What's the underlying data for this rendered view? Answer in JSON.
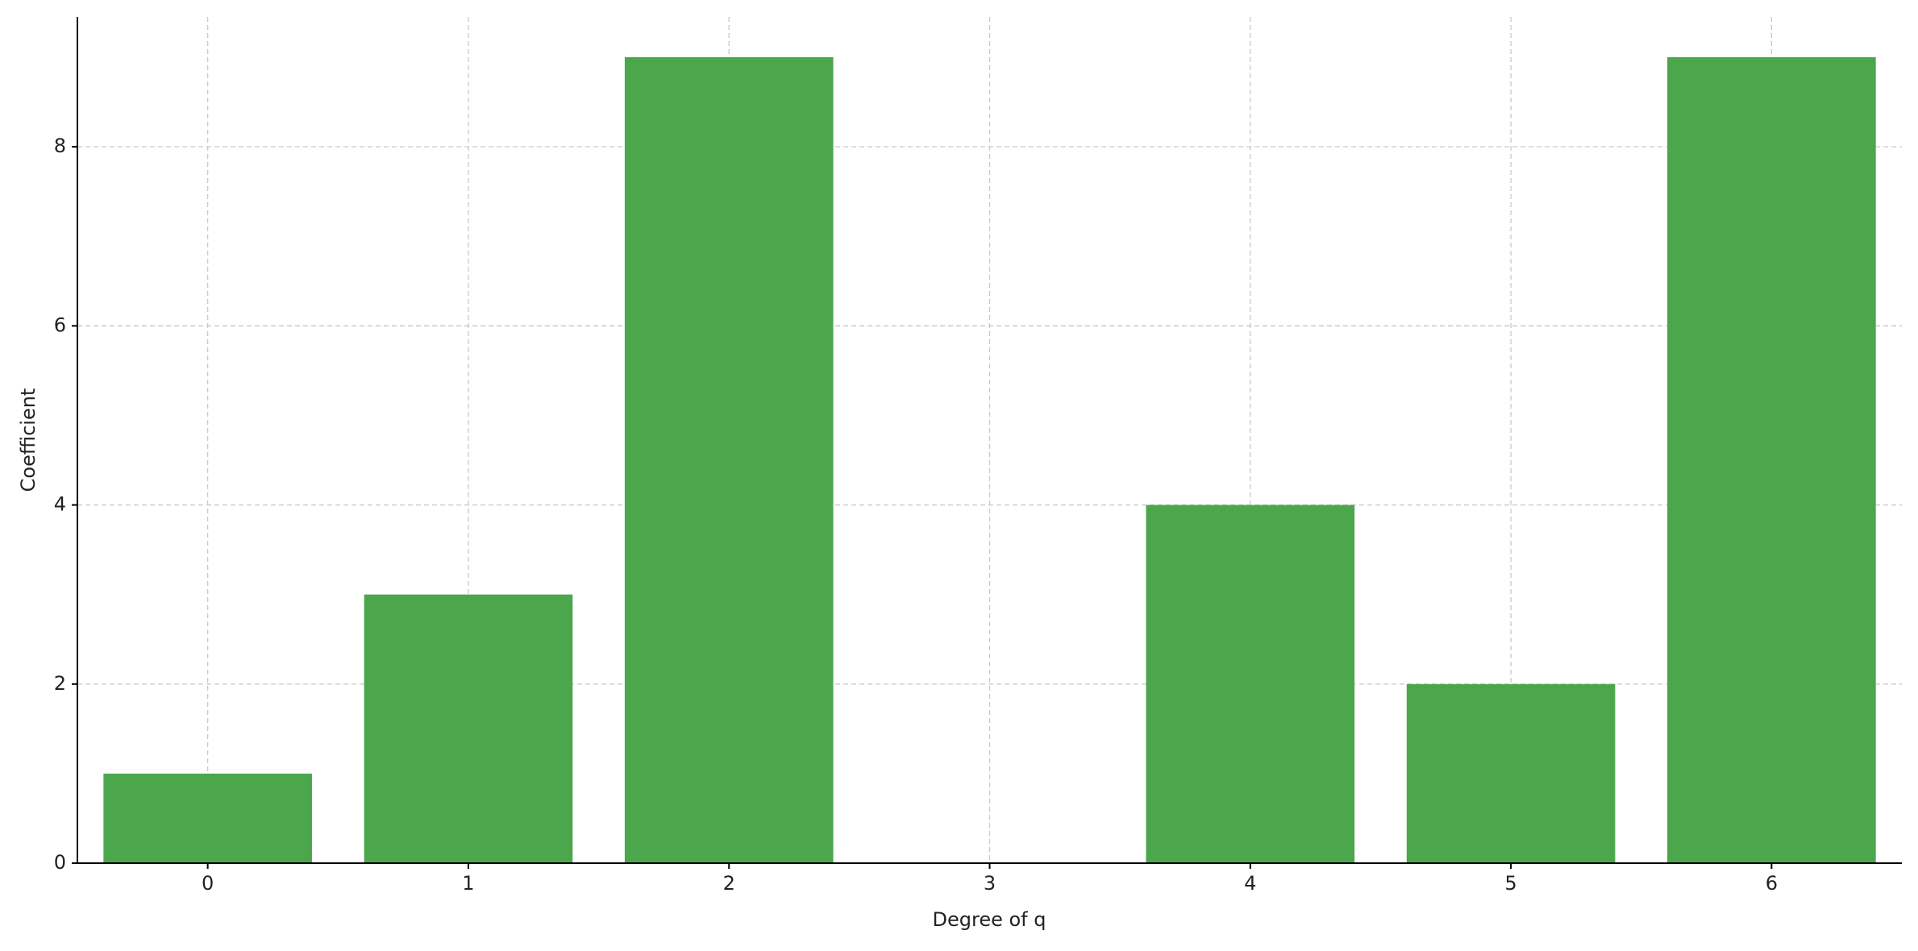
{
  "chart_data": {
    "type": "bar",
    "x_label": "Degree of q",
    "y_label": "Coefficient",
    "x": [
      0,
      1,
      2,
      3,
      4,
      5,
      6
    ],
    "values": [
      1,
      3,
      9,
      0,
      4,
      2,
      9
    ],
    "color": "#4ca64c",
    "xlim": [
      -0.5,
      6.5
    ],
    "xticks": [
      0,
      1,
      2,
      3,
      4,
      5,
      6
    ],
    "ylim": [
      0,
      9.45
    ],
    "yticks": [
      0,
      2,
      4,
      6,
      8
    ],
    "grid": true,
    "bar_width": 0.8
  }
}
